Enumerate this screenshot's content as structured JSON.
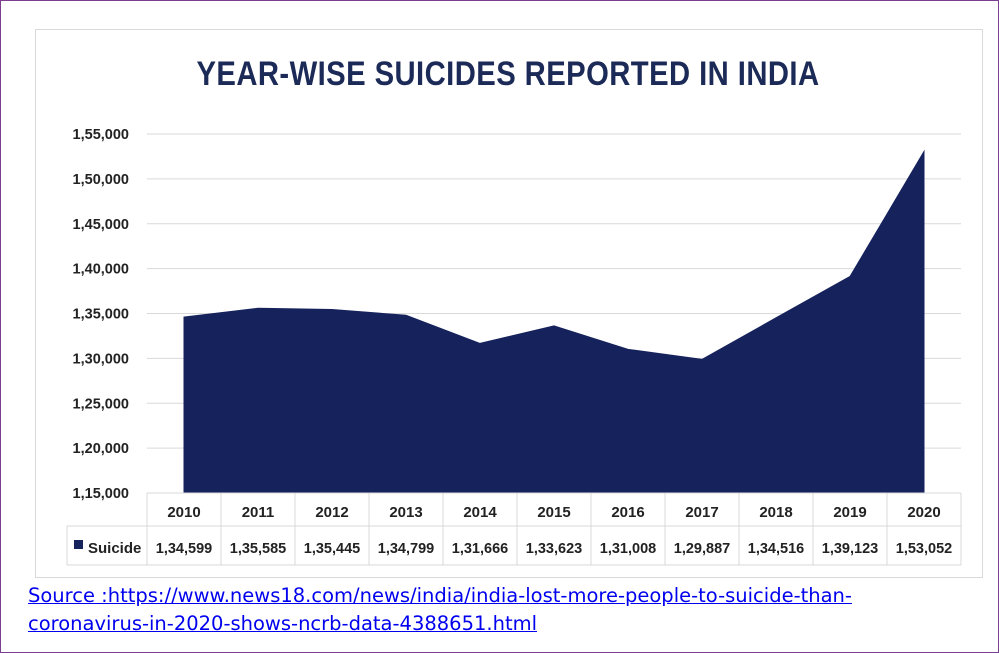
{
  "colors": {
    "series": "#16225c",
    "grid": "#d9d9d9",
    "text": "#222222",
    "title": "#1b2a57",
    "link": "#0000ee",
    "border": "#7a3f8f"
  },
  "chart_data": {
    "type": "area",
    "title": "YEAR-WISE SUICIDES REPORTED IN INDIA",
    "xlabel": "",
    "ylabel": "",
    "x": [
      "2010",
      "2011",
      "2012",
      "2013",
      "2014",
      "2015",
      "2016",
      "2017",
      "2018",
      "2019",
      "2020"
    ],
    "series": [
      {
        "name": "Suicide",
        "values": [
          134599,
          135585,
          135445,
          134799,
          131666,
          133623,
          131008,
          129887,
          134516,
          139123,
          153052
        ],
        "value_labels": [
          "1,34,599",
          "1,35,585",
          "1,35,445",
          "1,34,799",
          "1,31,666",
          "1,33,623",
          "1,31,008",
          "1,29,887",
          "1,34,516",
          "1,39,123",
          "1,53,052"
        ]
      }
    ],
    "ylim": [
      115000,
      155000
    ],
    "yticks": [
      115000,
      120000,
      125000,
      130000,
      135000,
      140000,
      145000,
      150000,
      155000
    ],
    "ytick_labels": [
      "1,15,000",
      "1,20,000",
      "1,25,000",
      "1,30,000",
      "1,35,000",
      "1,40,000",
      "1,45,000",
      "1,50,000",
      "1,55,000"
    ],
    "grid": true,
    "legend": "data-table-left",
    "data_table": true
  },
  "source": {
    "line1": "Source :https://www.news18.com/news/india/india-lost-more-people-to-suicide-than-",
    "line2": "coronavirus-in-2020-shows-ncrb-data-4388651.html"
  }
}
